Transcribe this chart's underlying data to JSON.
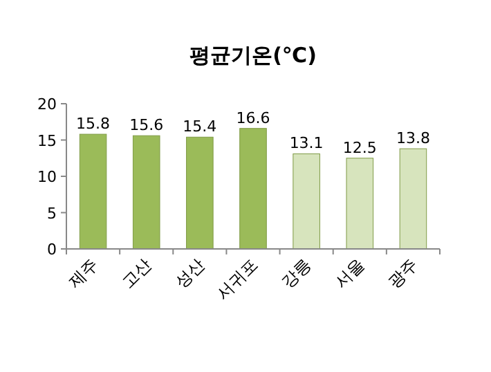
{
  "chart_data": {
    "type": "bar",
    "title": "평균기온(℃)",
    "categories": [
      "제주",
      "고산",
      "성산",
      "서귀포",
      "강릉",
      "서울",
      "광주"
    ],
    "values": [
      15.8,
      15.6,
      15.4,
      16.6,
      13.1,
      12.5,
      13.8
    ],
    "colors": [
      "#9bbb59",
      "#9bbb59",
      "#9bbb59",
      "#9bbb59",
      "#d7e4bd",
      "#d7e4bd",
      "#d7e4bd"
    ],
    "ylim": [
      0,
      20
    ],
    "yticks": [
      0,
      5,
      10,
      15,
      20
    ],
    "data_labels": true,
    "grid": false
  }
}
